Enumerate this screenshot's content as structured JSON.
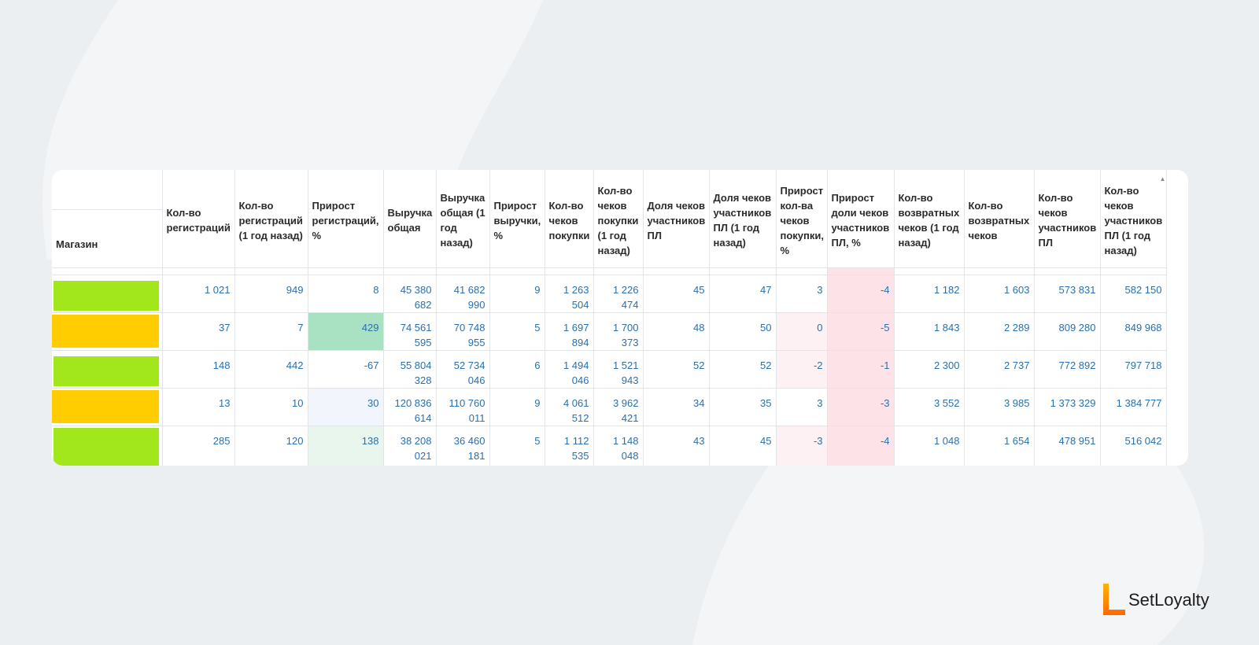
{
  "colors": {
    "background": "#eceff1",
    "swatch_green": "#a2e61c",
    "swatch_yellow": "#ffcd00",
    "value_text": "#2a6fae",
    "logo_accent": "#ff8a00"
  },
  "table": {
    "columns": [
      "Магазин",
      "Кол-во регистраций",
      "Кол-во регистраций (1 год назад)",
      "Прирост регистраций, %",
      "Выручка общая",
      "Выручка общая (1 год назад)",
      "Прирост выручки, %",
      "Кол-во чеков покупки",
      "Кол-во чеков покупки (1 год назад)",
      "Доля чеков участников ПЛ",
      "Доля чеков участников ПЛ (1 год назад)",
      "Прирост кол-ва чеков покупки, %",
      "Прирост доли чеков участников ПЛ, %",
      "Кол-во возвратных чеков (1 год назад)",
      "Кол-во возвратных чеков",
      "Кол-во чеков участников ПЛ",
      "Кол-во чеков участников ПЛ (1 год назад)"
    ],
    "rows": [
      {
        "store_color": "green",
        "values": [
          "1 021",
          "949",
          "8",
          "45 380 682",
          "41 682 990",
          "9",
          "1 263 504",
          "1 226 474",
          "45",
          "47",
          "3",
          "-4",
          "1 182",
          "1 603",
          "573 831",
          "582 150"
        ]
      },
      {
        "store_color": "yellow",
        "values": [
          "37",
          "7",
          "429",
          "74 561 595",
          "70 748 955",
          "5",
          "1 697 894",
          "1 700 373",
          "48",
          "50",
          "0",
          "-5",
          "1 843",
          "2 289",
          "809 280",
          "849 968"
        ]
      },
      {
        "store_color": "green",
        "values": [
          "148",
          "442",
          "-67",
          "55 804 328",
          "52 734 046",
          "6",
          "1 494 046",
          "1 521 943",
          "52",
          "52",
          "-2",
          "-1",
          "2 300",
          "2 737",
          "772 892",
          "797 718"
        ]
      },
      {
        "store_color": "yellow",
        "values": [
          "13",
          "10",
          "30",
          "120 836 614",
          "110 760 011",
          "9",
          "4 061 512",
          "3 962 421",
          "34",
          "35",
          "3",
          "-3",
          "3 552",
          "3 985",
          "1 373 329",
          "1 384 777"
        ]
      },
      {
        "store_color": "green",
        "values": [
          "285",
          "120",
          "138",
          "38 208 021",
          "36 460 181",
          "5",
          "1 112 535",
          "1 148 048",
          "43",
          "45",
          "-3",
          "-4",
          "1 048",
          "1 654",
          "478 951",
          "516 042"
        ]
      }
    ]
  },
  "logo": {
    "text": "SetLoyalty",
    "icon": "setloyalty-logo-icon"
  },
  "sort_icon": "sort-ascending-icon"
}
